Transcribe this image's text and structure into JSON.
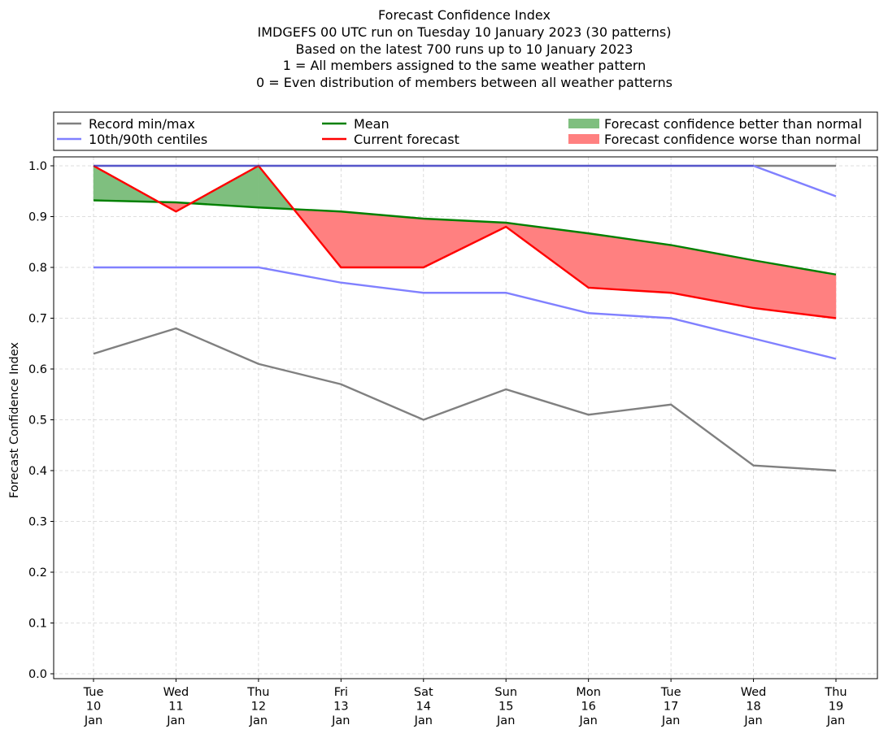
{
  "chart_data": {
    "type": "line",
    "title_lines": [
      "Forecast Confidence Index",
      "IMDGEFS 00 UTC run on Tuesday 10 January 2023 (30 patterns)",
      "Based on the latest 700 runs up to 10 January 2023",
      "1 = All members assigned to the same weather pattern",
      "0 = Even distribution of members between all weather patterns"
    ],
    "ylabel": "Forecast Confidence Index",
    "ylim": [
      0,
      1
    ],
    "yticks": [
      "0.0",
      "0.1",
      "0.2",
      "0.3",
      "0.4",
      "0.5",
      "0.6",
      "0.7",
      "0.8",
      "0.9",
      "1.0"
    ],
    "categories": [
      [
        "Tue",
        "10",
        "Jan"
      ],
      [
        "Wed",
        "11",
        "Jan"
      ],
      [
        "Thu",
        "12",
        "Jan"
      ],
      [
        "Fri",
        "13",
        "Jan"
      ],
      [
        "Sat",
        "14",
        "Jan"
      ],
      [
        "Sun",
        "15",
        "Jan"
      ],
      [
        "Mon",
        "16",
        "Jan"
      ],
      [
        "Tue",
        "17",
        "Jan"
      ],
      [
        "Wed",
        "18",
        "Jan"
      ],
      [
        "Thu",
        "19",
        "Jan"
      ]
    ],
    "grid": true,
    "legend_position": "top",
    "series": [
      {
        "name": "Record min/max",
        "role": "record_max",
        "color": "#808080",
        "values": [
          1.0,
          1.0,
          1.0,
          1.0,
          1.0,
          1.0,
          1.0,
          1.0,
          1.0,
          1.0
        ]
      },
      {
        "name": "Record min/max",
        "role": "record_min",
        "color": "#808080",
        "values": [
          0.63,
          0.68,
          0.61,
          0.57,
          0.5,
          0.56,
          0.51,
          0.53,
          0.41,
          0.4
        ]
      },
      {
        "name": "10th/90th centiles",
        "role": "p90",
        "color": "#8080ff",
        "values": [
          1.0,
          1.0,
          1.0,
          1.0,
          1.0,
          1.0,
          1.0,
          1.0,
          1.0,
          0.94
        ]
      },
      {
        "name": "10th/90th centiles",
        "role": "p10",
        "color": "#8080ff",
        "values": [
          0.8,
          0.8,
          0.8,
          0.77,
          0.75,
          0.75,
          0.71,
          0.7,
          0.66,
          0.62
        ]
      },
      {
        "name": "Mean",
        "role": "mean",
        "color": "#008000",
        "values": [
          0.932,
          0.928,
          0.918,
          0.91,
          0.896,
          0.888,
          0.867,
          0.844,
          0.814,
          0.786
        ]
      },
      {
        "name": "Current forecast",
        "role": "current",
        "color": "#ff0000",
        "values": [
          1.0,
          0.91,
          1.0,
          0.8,
          0.8,
          0.88,
          0.76,
          0.75,
          0.72,
          0.7
        ]
      }
    ],
    "legend": [
      {
        "label": "Record min/max",
        "kind": "line",
        "color": "#808080"
      },
      {
        "label": "10th/90th centiles",
        "kind": "line",
        "color": "#8080ff"
      },
      {
        "label": "Mean",
        "kind": "line",
        "color": "#008000"
      },
      {
        "label": "Current forecast",
        "kind": "line",
        "color": "#ff0000"
      },
      {
        "label": "Forecast confidence better than normal",
        "kind": "patch",
        "color": "#7fbf7f"
      },
      {
        "label": "Forecast confidence worse than normal",
        "kind": "patch",
        "color": "#ff8080"
      }
    ]
  }
}
